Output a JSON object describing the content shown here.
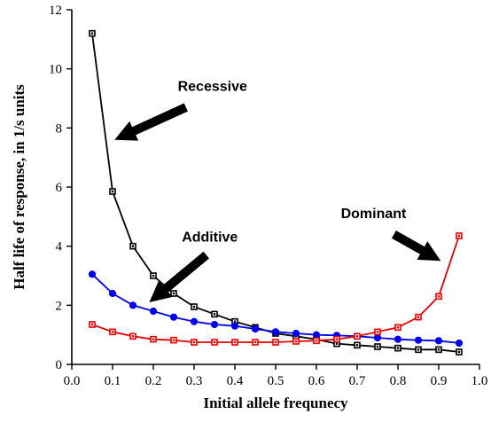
{
  "chart_data": {
    "type": "line",
    "xlabel": "Initial allele frequnecy",
    "ylabel": "Half life of response, in 1/s units",
    "xlim": [
      0.0,
      1.0
    ],
    "ylim": [
      0,
      12
    ],
    "xticks": [
      0.0,
      0.1,
      0.2,
      0.3,
      0.4,
      0.5,
      0.6,
      0.7,
      0.8,
      0.9,
      1.0
    ],
    "yticks": [
      0,
      2,
      4,
      6,
      8,
      10,
      12
    ],
    "xtick_labels": [
      "0.0",
      "0.1",
      "0.2",
      "0.3",
      "0.4",
      "0.5",
      "0.6",
      "0.7",
      "0.8",
      "0.9",
      "1.0"
    ],
    "ytick_labels": [
      "0",
      "2",
      "4",
      "6",
      "8",
      "10",
      "12"
    ],
    "grid": false,
    "legend": "none",
    "series": [
      {
        "name": "Recessive",
        "color": "#000000",
        "marker": "square",
        "x": [
          0.05,
          0.1,
          0.15,
          0.2,
          0.25,
          0.3,
          0.35,
          0.4,
          0.45,
          0.5,
          0.55,
          0.6,
          0.65,
          0.7,
          0.75,
          0.8,
          0.85,
          0.9,
          0.95
        ],
        "y": [
          11.2,
          5.85,
          4.0,
          3.0,
          2.4,
          1.95,
          1.7,
          1.45,
          1.25,
          1.05,
          0.95,
          0.85,
          0.7,
          0.65,
          0.6,
          0.55,
          0.5,
          0.5,
          0.42
        ]
      },
      {
        "name": "Additive",
        "color": "#0000ee",
        "marker": "circle",
        "x": [
          0.05,
          0.1,
          0.15,
          0.2,
          0.25,
          0.3,
          0.35,
          0.4,
          0.45,
          0.5,
          0.55,
          0.6,
          0.65,
          0.7,
          0.75,
          0.8,
          0.85,
          0.9,
          0.95
        ],
        "y": [
          3.05,
          2.4,
          2.0,
          1.8,
          1.6,
          1.45,
          1.35,
          1.3,
          1.2,
          1.1,
          1.05,
          1.0,
          0.98,
          0.95,
          0.9,
          0.85,
          0.82,
          0.8,
          0.72
        ]
      },
      {
        "name": "Dominant",
        "color": "#e60000",
        "marker": "square",
        "x": [
          0.05,
          0.1,
          0.15,
          0.2,
          0.25,
          0.3,
          0.35,
          0.4,
          0.45,
          0.5,
          0.55,
          0.6,
          0.65,
          0.7,
          0.75,
          0.8,
          0.85,
          0.9,
          0.95
        ],
        "y": [
          1.35,
          1.1,
          0.95,
          0.85,
          0.82,
          0.75,
          0.75,
          0.75,
          0.75,
          0.75,
          0.78,
          0.8,
          0.85,
          0.95,
          1.1,
          1.25,
          1.6,
          2.3,
          4.35
        ]
      }
    ],
    "annotations": [
      {
        "text": "Recessive",
        "x": 0.26,
        "y": 9.25,
        "arrow_from": [
          0.28,
          8.7
        ],
        "arrow_to": [
          0.105,
          7.6
        ]
      },
      {
        "text": "Additive",
        "x": 0.27,
        "y": 4.15,
        "arrow_from": [
          0.33,
          3.7
        ],
        "arrow_to": [
          0.19,
          2.1
        ]
      },
      {
        "text": "Dominant",
        "x": 0.66,
        "y": 4.95,
        "arrow_from": [
          0.79,
          4.4
        ],
        "arrow_to": [
          0.905,
          3.5
        ]
      }
    ]
  }
}
